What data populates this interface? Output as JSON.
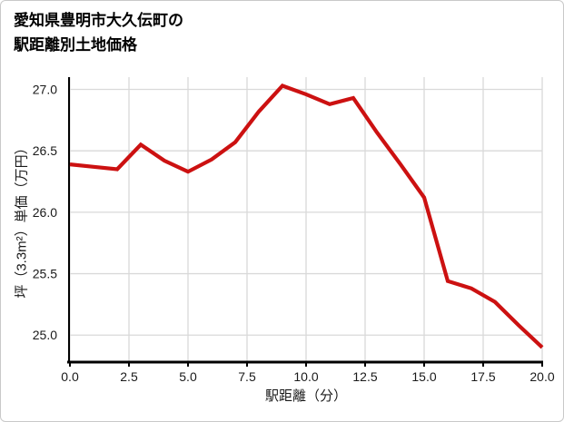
{
  "card": {
    "background": "#ffffff",
    "border_color": "#c9c9c9"
  },
  "title": {
    "text": "愛知県豊明市大久伝町の\n駅距離別土地価格"
  },
  "chart_data": {
    "type": "line",
    "title": "愛知県豊明市大久伝町の駅距離別土地価格",
    "xlabel": "駅距離（分）",
    "ylabel": "坪（3.3m²）単価（万円）",
    "x": [
      0,
      1,
      2,
      3,
      4,
      5,
      6,
      7,
      8,
      9,
      10,
      11,
      12,
      13,
      14,
      15,
      16,
      17,
      18,
      19,
      20
    ],
    "values": [
      26.39,
      26.37,
      26.35,
      26.55,
      26.42,
      26.33,
      26.43,
      26.57,
      26.82,
      27.03,
      26.96,
      26.88,
      26.93,
      26.65,
      26.39,
      26.12,
      25.44,
      25.38,
      25.27,
      25.08,
      24.9
    ],
    "xlim": [
      0,
      20
    ],
    "ylim": [
      24.78,
      27.1
    ],
    "x_ticks": [
      0,
      2.5,
      5,
      7.5,
      10,
      12.5,
      15,
      17.5,
      20
    ],
    "x_tick_labels": [
      "0.0",
      "2.5",
      "5.0",
      "7.5",
      "10.0",
      "12.5",
      "15.0",
      "17.5",
      "20.0"
    ],
    "y_ticks": [
      25.0,
      25.5,
      26.0,
      26.5,
      27.0
    ],
    "y_tick_labels": [
      "25.0",
      "25.5",
      "26.0",
      "26.5",
      "27.0"
    ],
    "grid": true,
    "legend": false,
    "colors": {
      "line": "#cc1111",
      "grid": "#d9d9d9",
      "axis": "#000000",
      "tick_text": "#1a1a1a"
    }
  }
}
